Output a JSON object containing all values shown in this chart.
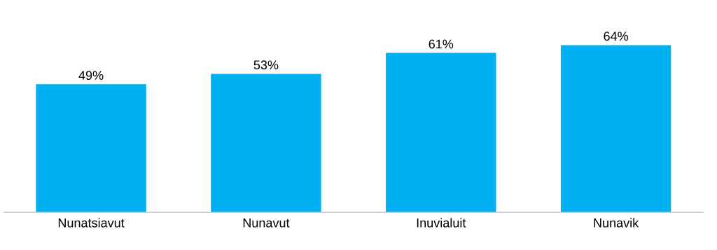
{
  "chart_data": {
    "type": "bar",
    "categories": [
      "Nunatsiavut",
      "Nunavut",
      "Inuvialuit",
      "Nunavik"
    ],
    "values": [
      49,
      53,
      61,
      64
    ],
    "value_labels": [
      "49%",
      "53%",
      "61%",
      "64%"
    ],
    "color": "#00b0f0",
    "grid": false,
    "legend": false
  }
}
